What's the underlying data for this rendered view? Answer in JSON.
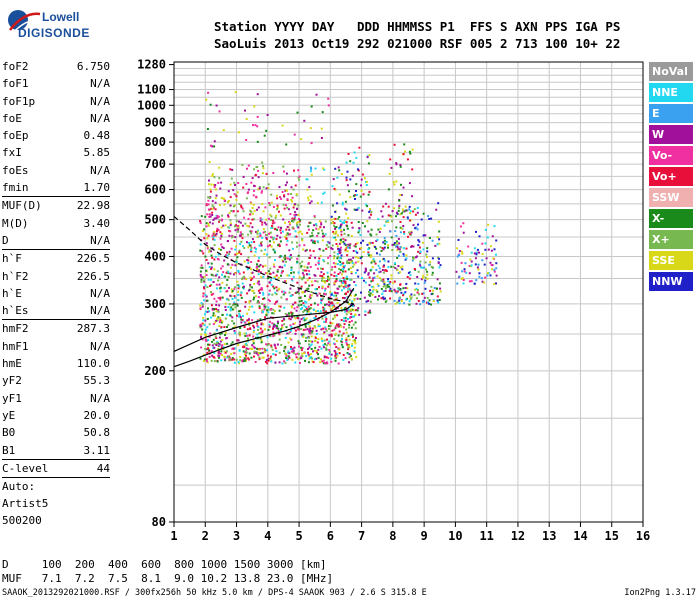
{
  "logo": {
    "line1": "Lowell",
    "line2": "DIGISONDE"
  },
  "header": {
    "labels": "Station YYYY DAY   DDD HHMMSS P1  FFS S AXN PPS IGA PS",
    "values": "SaoLuis 2013 Oct19 292 021000 RSF 005 2 713 100 10+ 22"
  },
  "parameters": [
    {
      "key": "foF2",
      "value": "6.750"
    },
    {
      "key": "foF1",
      "value": "N/A"
    },
    {
      "key": "foF1p",
      "value": "N/A"
    },
    {
      "key": "foE",
      "value": "N/A"
    },
    {
      "key": "foEp",
      "value": "0.48"
    },
    {
      "key": "fxI",
      "value": "5.85"
    },
    {
      "key": "foEs",
      "value": "N/A"
    },
    {
      "key": "fmin",
      "value": "1.70"
    },
    {
      "sep": true
    },
    {
      "key": "MUF(D)",
      "value": "22.98"
    },
    {
      "key": "M(D)",
      "value": "3.40"
    },
    {
      "key": "D",
      "value": "N/A"
    },
    {
      "sep": true
    },
    {
      "key": "h`F",
      "value": "226.5"
    },
    {
      "key": "h`F2",
      "value": "226.5"
    },
    {
      "key": "h`E",
      "value": "N/A"
    },
    {
      "key": "h`Es",
      "value": "N/A"
    },
    {
      "sep": true
    },
    {
      "key": "hmF2",
      "value": "287.3"
    },
    {
      "key": "hmF1",
      "value": "N/A"
    },
    {
      "key": "hmE",
      "value": "110.0"
    },
    {
      "key": "yF2",
      "value": "55.3"
    },
    {
      "key": "yF1",
      "value": "N/A"
    },
    {
      "key": "yE",
      "value": "20.0"
    },
    {
      "key": "B0",
      "value": "50.8"
    },
    {
      "key": "B1",
      "value": "3.11"
    },
    {
      "sep": true
    },
    {
      "key": "C-level",
      "value": "44"
    },
    {
      "sep": true
    }
  ],
  "auto": {
    "line1": "Auto:",
    "line2": "Artist5",
    "line3": "500200"
  },
  "legend": [
    {
      "label": "NoVal",
      "color": "#9a9a9a"
    },
    {
      "label": "NNE",
      "color": "#22d8f0"
    },
    {
      "label": "E",
      "color": "#3aa0f0"
    },
    {
      "label": "W",
      "color": "#a0109a"
    },
    {
      "label": "Vo-",
      "color": "#f030a0"
    },
    {
      "label": "Vo+",
      "color": "#e8103a"
    },
    {
      "label": "SSW",
      "color": "#f0b0b0"
    },
    {
      "label": "X-",
      "color": "#1a8a1a"
    },
    {
      "label": "X+",
      "color": "#78b850"
    },
    {
      "label": "SSE",
      "color": "#d8d818"
    },
    {
      "label": "NNW",
      "color": "#2020c8"
    }
  ],
  "muf_table": {
    "d_row": "D     100  200  400  600  800 1000 1500 3000 [km]",
    "muf_row": "MUF   7.1  7.2  7.5  8.1  9.0 10.2 13.8 23.0 [MHz]"
  },
  "footer": {
    "left": "SAAOK_2013292021000.RSF / 300fx256h 50 kHz 5.0 km / DPS-4 SAAOK 903 / 2.6 S 315.8 E",
    "right": "Ion2Png 1.3.17"
  },
  "chart_data": {
    "type": "scatter",
    "title": "",
    "xlabel": "",
    "ylabel": "",
    "xlim": [
      1,
      16
    ],
    "ylim": [
      80,
      1300
    ],
    "y_scale": "log",
    "x_ticks": [
      1,
      2,
      3,
      4,
      5,
      6,
      7,
      8,
      9,
      10,
      11,
      12,
      13,
      14,
      15,
      16
    ],
    "y_ticks": [
      80,
      200,
      300,
      400,
      500,
      600,
      700,
      800,
      900,
      1000,
      1100,
      1280
    ],
    "grid": true,
    "traces": [
      {
        "name": "",
        "x": [
          1.0,
          1.5,
          2.0,
          2.5,
          3.0,
          3.5,
          4.0,
          4.5,
          5.0,
          5.5,
          6.0,
          6.5,
          6.75
        ],
        "y": [
          205,
          212,
          220,
          228,
          236,
          242,
          248,
          254,
          262,
          272,
          285,
          305,
          330
        ]
      },
      {
        "name": "",
        "x": [
          1.0,
          2.0,
          3.0,
          4.0,
          5.0,
          6.0,
          6.5,
          6.75
        ],
        "y": [
          225,
          245,
          260,
          275,
          280,
          285,
          290,
          300
        ]
      },
      {
        "name": "",
        "x": [
          1.0,
          1.5,
          2.0,
          2.5,
          3.0,
          3.5,
          4.0,
          5.0,
          6.0,
          6.75
        ],
        "y": [
          510,
          470,
          430,
          405,
          385,
          370,
          355,
          330,
          310,
          300
        ]
      }
    ],
    "echo_clusters": [
      {
        "x": [
          1.8,
          6.8
        ],
        "y": [
          210,
          520
        ],
        "colors": [
          "Vo+",
          "Vo-",
          "W",
          "X-",
          "X+",
          "SSE",
          "NNE"
        ],
        "density": 1.0
      },
      {
        "x": [
          2.0,
          5.0
        ],
        "y": [
          450,
          720
        ],
        "colors": [
          "W",
          "Vo-",
          "Vo+",
          "SSE",
          "X+"
        ],
        "density": 0.6
      },
      {
        "x": [
          5.2,
          5.8
        ],
        "y": [
          550,
          700
        ],
        "colors": [
          "NNE",
          "E",
          "W",
          "SSE"
        ],
        "density": 0.4
      },
      {
        "x": [
          6.0,
          7.3
        ],
        "y": [
          280,
          780
        ],
        "colors": [
          "NNE",
          "SSE",
          "NNW",
          "Vo+",
          "W",
          "X-"
        ],
        "density": 0.5
      },
      {
        "x": [
          7.2,
          9.5
        ],
        "y": [
          300,
          560
        ],
        "colors": [
          "NNE",
          "E",
          "NNW",
          "W",
          "X-",
          "X+",
          "SSE",
          "Vo+"
        ],
        "density": 0.7
      },
      {
        "x": [
          7.8,
          8.6
        ],
        "y": [
          500,
          800
        ],
        "colors": [
          "W",
          "X-",
          "Vo+",
          "SSE"
        ],
        "density": 0.3
      },
      {
        "x": [
          10.0,
          11.3
        ],
        "y": [
          340,
          500
        ],
        "colors": [
          "NNE",
          "E",
          "W",
          "NNW",
          "SSE",
          "Vo-"
        ],
        "density": 0.5
      },
      {
        "x": [
          2.0,
          6.0
        ],
        "y": [
          780,
          1100
        ],
        "colors": [
          "W",
          "Vo-",
          "SSE",
          "X-"
        ],
        "density": 0.08
      }
    ]
  }
}
